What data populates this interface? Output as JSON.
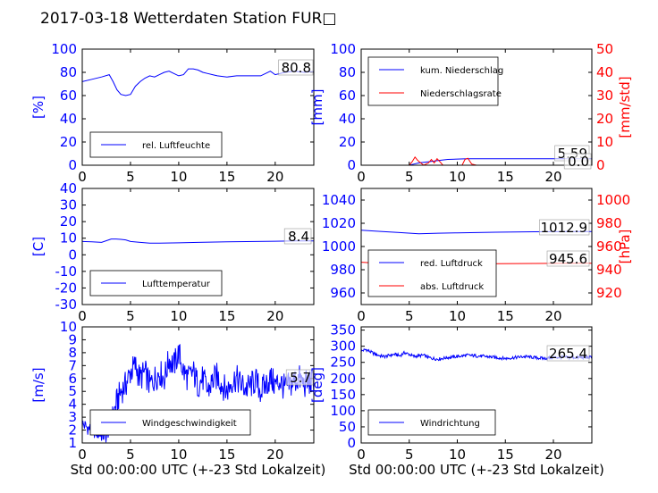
{
  "figure_title": "2017-03-18 Wetterdaten Station FUR□",
  "colors": {
    "blue": "#0000ff",
    "red": "#ff0000",
    "black": "#000000",
    "frame": "#000000"
  },
  "chart_data": [
    {
      "id": "humidity",
      "type": "line",
      "title": "",
      "xlabel": "",
      "ylabel": "[%]",
      "xlim": [
        0,
        24
      ],
      "ylim": [
        0,
        100
      ],
      "xticks": [
        0,
        5,
        10,
        15,
        20
      ],
      "yticks": [
        0,
        20,
        40,
        60,
        80,
        100
      ],
      "legend": "lower-left",
      "annotation": "80.8",
      "series": [
        {
          "name": "rel. Luftfeuchte",
          "color": "#0000ff",
          "axis": "left",
          "x": [
            0,
            1,
            2,
            2.8,
            3.2,
            3.6,
            4,
            4.5,
            5,
            5.5,
            6,
            6.5,
            7,
            7.5,
            8,
            8.5,
            9,
            9.5,
            10,
            10.5,
            11,
            11.5,
            12,
            12.5,
            13,
            13.5,
            14,
            15,
            16,
            17,
            18,
            18.5,
            19,
            19.5,
            20,
            21,
            22,
            23,
            24
          ],
          "y": [
            72,
            74,
            76,
            78,
            72,
            65,
            61,
            60,
            61,
            68,
            72,
            75,
            77,
            76,
            78,
            80,
            81,
            79,
            77,
            78,
            83,
            83,
            82,
            80,
            79,
            78,
            77,
            76,
            77,
            77,
            77,
            77,
            79,
            81,
            78,
            80,
            81,
            80,
            80.8
          ]
        }
      ]
    },
    {
      "id": "precip",
      "type": "line",
      "title": "",
      "xlabel": "",
      "ylabel": "[mm]",
      "ylabel_right": "[mm/std]",
      "xlim": [
        0,
        24
      ],
      "ylim": [
        0,
        100
      ],
      "ylim_right": [
        0,
        50
      ],
      "xticks": [
        0,
        5,
        10,
        15,
        20
      ],
      "yticks": [
        0,
        20,
        40,
        60,
        80,
        100
      ],
      "yticks_right": [
        0,
        10,
        20,
        30,
        40,
        50
      ],
      "legend": "upper-left",
      "annotations": [
        "5.59",
        "0.0"
      ],
      "series": [
        {
          "name": "kum. Niederschlag",
          "color": "#0000ff",
          "axis": "left",
          "x": [
            0,
            5,
            5.5,
            6,
            7,
            8,
            9,
            10,
            11,
            12,
            24
          ],
          "y": [
            0,
            0,
            1,
            2,
            3,
            4,
            5,
            5.3,
            5.59,
            5.59,
            5.59
          ]
        },
        {
          "name": "Niederschlagsrate",
          "color": "#ff0000",
          "axis": "right",
          "x": [
            0,
            5,
            5.3,
            5.6,
            5.9,
            6.2,
            6.5,
            7,
            7.3,
            7.6,
            7.9,
            8.2,
            8.5,
            9,
            10.5,
            10.8,
            11.1,
            11.5,
            12,
            24
          ],
          "y": [
            0,
            0,
            1.5,
            3.5,
            2,
            1,
            0,
            1,
            2.5,
            1,
            2.8,
            1.5,
            0,
            0,
            0,
            2.5,
            3,
            0.5,
            0,
            0
          ]
        }
      ]
    },
    {
      "id": "temperature",
      "type": "line",
      "title": "",
      "xlabel": "",
      "ylabel": "[C]",
      "xlim": [
        0,
        24
      ],
      "ylim": [
        -30,
        40
      ],
      "xticks": [
        0,
        5,
        10,
        15,
        20
      ],
      "yticks": [
        -30,
        -20,
        -10,
        0,
        10,
        20,
        30,
        40
      ],
      "legend": "lower-left",
      "annotation": "8.4",
      "series": [
        {
          "name": "Lufttemperatur",
          "color": "#0000ff",
          "axis": "left",
          "x": [
            0,
            1,
            2,
            2.5,
            3,
            3.5,
            4,
            4.5,
            5,
            6,
            7,
            8,
            10,
            12,
            15,
            18,
            20,
            22,
            24
          ],
          "y": [
            8,
            7.8,
            7.5,
            8.5,
            9.5,
            9.5,
            9.3,
            9,
            8,
            7.5,
            7,
            7,
            7.2,
            7.5,
            7.8,
            8,
            8.2,
            8.4,
            8.4
          ]
        }
      ]
    },
    {
      "id": "pressure",
      "type": "line",
      "title": "",
      "xlabel": "",
      "ylabel": "",
      "ylabel_right": "[hPa]",
      "xlim": [
        0,
        24
      ],
      "ylim": [
        950,
        1050
      ],
      "ylim_right": [
        910,
        1010
      ],
      "xticks": [
        0,
        5,
        10,
        15,
        20
      ],
      "yticks": [
        960,
        980,
        1000,
        1020,
        1040
      ],
      "yticks_right": [
        920,
        940,
        960,
        980,
        1000
      ],
      "legend": "lower-left",
      "annotations": [
        "1012.9",
        "945.6"
      ],
      "series": [
        {
          "name": "red. Luftdruck",
          "color": "#0000ff",
          "axis": "left",
          "x": [
            0,
            2,
            4,
            6,
            8,
            10,
            12,
            14,
            16,
            18,
            20,
            22,
            24
          ],
          "y": [
            1014,
            1013,
            1012,
            1011,
            1011.5,
            1011.8,
            1012,
            1012.3,
            1012.5,
            1012.7,
            1012.8,
            1012.9,
            1012.9
          ]
        },
        {
          "name": "abs. Luftdruck",
          "color": "#ff0000",
          "axis": "right",
          "x": [
            0,
            2,
            4,
            6,
            8,
            10,
            12,
            14,
            16,
            18,
            20,
            22,
            24
          ],
          "y": [
            946.5,
            945.5,
            944.5,
            944,
            944.5,
            944.8,
            945,
            945.2,
            945.3,
            945.4,
            945.5,
            945.6,
            945.6
          ]
        }
      ]
    },
    {
      "id": "wind_speed",
      "type": "line",
      "title": "",
      "xlabel": "Std 00:00:00 UTC (+-23 Std Lokalzeit)",
      "ylabel": "[m/s]",
      "xlim": [
        0,
        24
      ],
      "ylim": [
        1,
        10
      ],
      "xticks": [
        0,
        5,
        10,
        15,
        20
      ],
      "yticks": [
        1,
        2,
        3,
        4,
        5,
        6,
        7,
        8,
        9,
        10
      ],
      "legend": "lower-left",
      "annotation": "5.7",
      "series": [
        {
          "name": "Windgeschwindigkeit",
          "color": "#0000ff",
          "axis": "left",
          "x": [
            0,
            0.5,
            1,
            1.5,
            2,
            2.5,
            3,
            3.5,
            4,
            4.5,
            5,
            5.5,
            6,
            6.5,
            7,
            7.5,
            8,
            8.5,
            9,
            9.5,
            10,
            10.5,
            11,
            11.5,
            12,
            12.5,
            13,
            13.5,
            14,
            14.5,
            15,
            15.5,
            16,
            16.5,
            17,
            17.5,
            18,
            18.5,
            19,
            19.5,
            20,
            20.5,
            21,
            21.5,
            22,
            22.5,
            23,
            23.5,
            24
          ],
          "y": [
            2.5,
            2.2,
            2.0,
            1.8,
            1.6,
            1.5,
            2.5,
            4.0,
            5.0,
            5.5,
            6.5,
            7.0,
            6.0,
            6.5,
            5.5,
            6.0,
            6.5,
            6.0,
            7.5,
            7.0,
            8.0,
            6.5,
            6.0,
            6.5,
            5.5,
            6.0,
            5.0,
            5.8,
            6.2,
            5.5,
            5.0,
            5.8,
            6.0,
            5.5,
            5.2,
            5.5,
            5.8,
            5.0,
            5.5,
            6.0,
            5.5,
            5.8,
            5.2,
            5.5,
            5.8,
            6.0,
            5.5,
            5.7,
            5.7
          ]
        }
      ]
    },
    {
      "id": "wind_direction",
      "type": "line",
      "title": "",
      "xlabel": "Std 00:00:00 UTC (+-23 Std Lokalzeit)",
      "ylabel": "[deg]",
      "xlim": [
        0,
        24
      ],
      "ylim": [
        0,
        360
      ],
      "xticks": [
        0,
        5,
        10,
        15,
        20
      ],
      "yticks": [
        0,
        50,
        100,
        150,
        200,
        250,
        300,
        350
      ],
      "legend": "lower-left",
      "annotation": "265.4",
      "series": [
        {
          "name": "Windrichtung",
          "color": "#0000ff",
          "axis": "left",
          "x": [
            0,
            0.5,
            1,
            1.5,
            2,
            2.5,
            3,
            3.5,
            4,
            4.5,
            5,
            5.5,
            6,
            6.5,
            7,
            7.5,
            8,
            9,
            10,
            11,
            12,
            13,
            14,
            15,
            16,
            17,
            18,
            19,
            20,
            21,
            22,
            23,
            24
          ],
          "y": [
            285,
            290,
            282,
            275,
            270,
            268,
            272,
            275,
            270,
            280,
            275,
            268,
            270,
            272,
            265,
            262,
            260,
            265,
            268,
            272,
            270,
            268,
            265,
            262,
            265,
            268,
            265,
            262,
            265,
            266,
            265,
            265,
            265.4
          ]
        }
      ]
    }
  ]
}
